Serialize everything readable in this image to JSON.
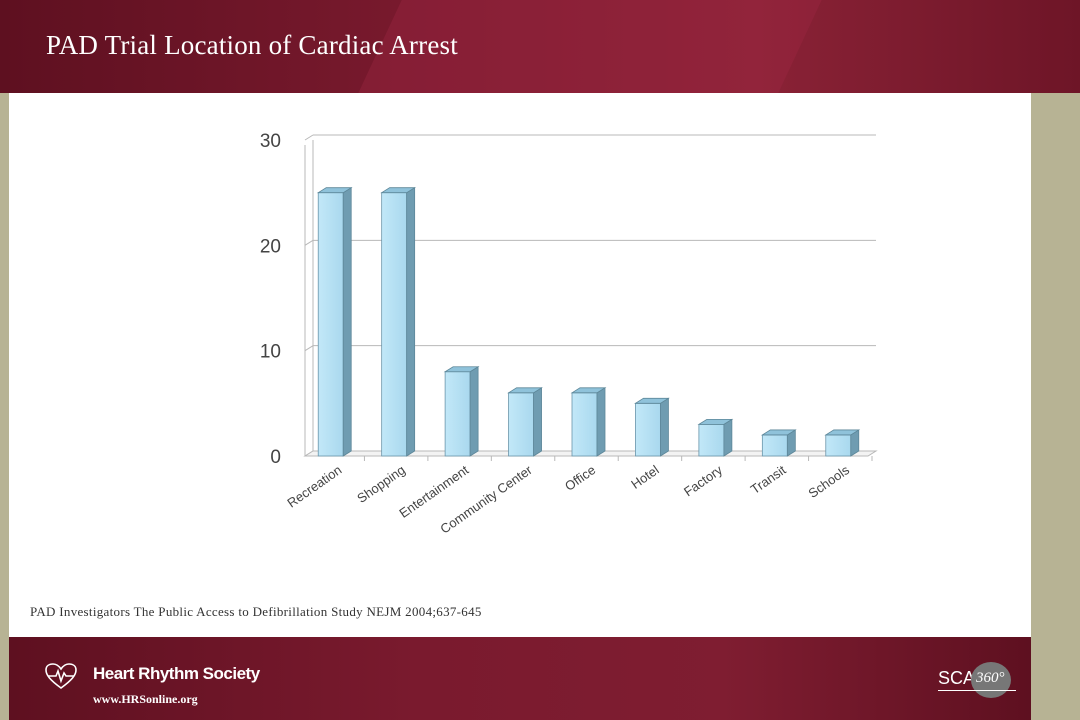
{
  "slide": {
    "title": "PAD Trial Location of  Cardiac Arrest",
    "citation": "PAD Investigators The Public Access to Defibrillation Study NEJM 2004;637-645"
  },
  "footer": {
    "org_name": "Heart Rhythm Society",
    "url": "www.HRSonline.org",
    "sca_label": "SCA",
    "sca_number": "360°",
    "logo_icon": "heart-rhythm-logo-icon"
  },
  "colors": {
    "header": "#7a1a2e",
    "bar_front": "#a9d8ee",
    "bar_side": "#6f9cb1",
    "bar_top": "#8fc2da"
  },
  "chart_data": {
    "type": "bar",
    "categories": [
      "Recreation",
      "Shopping",
      "Entertainment",
      "Community Center",
      "Office",
      "Hotel",
      "Factory",
      "Transit",
      "Schools"
    ],
    "values": [
      25,
      25,
      8,
      6,
      6,
      5,
      3,
      2,
      2
    ],
    "title": "",
    "xlabel": "",
    "ylabel": "",
    "ylim": [
      0,
      30
    ],
    "yticks": [
      "0",
      "10",
      "20",
      "30"
    ],
    "grid": true,
    "style": "3d"
  }
}
